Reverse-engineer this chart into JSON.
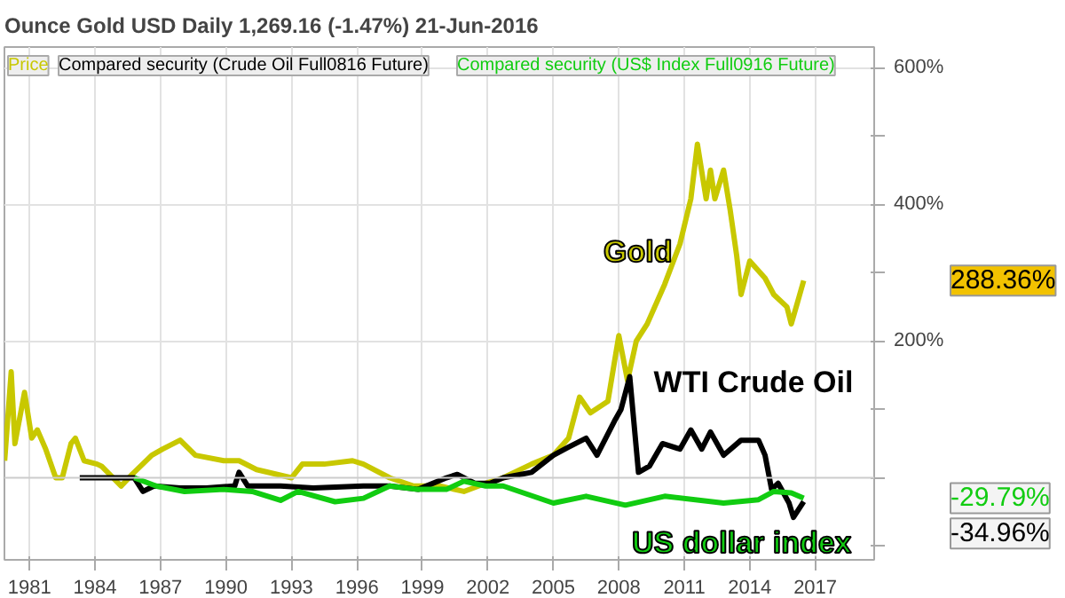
{
  "chart_data": {
    "type": "line",
    "title": "Ounce Gold USD   Daily   1,269.16 (-1.47%)   21-Jun-2016",
    "annotations": [
      "Price",
      "Compared security (Crude Oil Full0816 Future)",
      "Compared security (US$ Index Full0916 Future)",
      "288.36%",
      "-34.96%",
      "-29.79%"
    ],
    "xlim": [
      1979.85,
      2019.7
    ],
    "xticks": [
      1981,
      1984,
      1987,
      1990,
      1993,
      1996,
      1999,
      2002,
      2005,
      2008,
      2011,
      2014,
      2017
    ],
    "ylim": [
      -120,
      630
    ],
    "yticks": [
      {
        "value": -100,
        "label": null
      },
      {
        "value": 0,
        "label": null
      },
      {
        "value": 100,
        "label": null
      },
      {
        "value": 200,
        "label": "200%"
      },
      {
        "value": 300,
        "label": null
      },
      {
        "value": 400,
        "label": "400%"
      },
      {
        "value": 500,
        "label": null
      },
      {
        "value": 600,
        "label": "600%"
      }
    ],
    "grid": true,
    "line_style": "solid",
    "ref_lines": [
      {
        "axis": "y",
        "value": 0,
        "label": null,
        "color": "#cccccc"
      }
    ],
    "series": [
      {
        "name": "Gold",
        "color": "#c8c800",
        "x": [
          1979.86,
          1980.16,
          1980.33,
          1980.77,
          1981.1,
          1981.36,
          1981.74,
          1982.2,
          1982.5,
          1982.9,
          1983.1,
          1983.5,
          1984.1,
          1984.3,
          1985.2,
          1985.7,
          1986.6,
          1987.1,
          1987.9,
          1988.6,
          1989.9,
          1990.6,
          1991.4,
          1993.0,
          1993.5,
          1994.5,
          1995.8,
          1996.3,
          1997.5,
          1998.6,
          1999.8,
          2000.9,
          2001.9,
          2002.7,
          2004.0,
          2005.0,
          2005.7,
          2006.2,
          2006.7,
          2007.5,
          2008.0,
          2008.4,
          2008.8,
          2009.3,
          2010.1,
          2010.8,
          2011.3,
          2011.6,
          2012.0,
          2012.2,
          2012.4,
          2012.8,
          2013.1,
          2013.4,
          2013.6,
          2014.0,
          2014.7,
          2015.1,
          2015.7,
          2015.9,
          2016.2,
          2016.47
        ],
        "values": [
          25,
          155,
          50,
          125,
          58,
          70,
          42,
          0,
          0,
          50,
          58,
          25,
          20,
          17,
          -12,
          5,
          33,
          42,
          55,
          33,
          25,
          25,
          12,
          0,
          20,
          20,
          25,
          20,
          0,
          -12,
          -12,
          -20,
          -8,
          0,
          20,
          33,
          58,
          118,
          95,
          112,
          208,
          142,
          200,
          225,
          283,
          342,
          408,
          488,
          408,
          450,
          408,
          450,
          392,
          325,
          268,
          317,
          292,
          268,
          250,
          225,
          258,
          288.36
        ]
      },
      {
        "name": "WTI Crude Oil",
        "color": "#000000",
        "x": [
          1983.3,
          1984.8,
          1985.8,
          1986.2,
          1986.7,
          1987.9,
          1989.1,
          1990.4,
          1990.6,
          1991.0,
          1992.5,
          1994.0,
          1996.3,
          1997.5,
          1998.8,
          2000.1,
          2000.6,
          2001.4,
          2002.1,
          2002.7,
          2004.0,
          2005.0,
          2005.7,
          2006.5,
          2007.0,
          2007.8,
          2008.1,
          2008.5,
          2008.9,
          2009.4,
          2010.0,
          2010.8,
          2011.3,
          2011.8,
          2012.2,
          2012.8,
          2013.6,
          2014.4,
          2014.7,
          2015.0,
          2015.3,
          2015.8,
          2016.0,
          2016.47
        ],
        "values": [
          0,
          0,
          0,
          -20,
          -12,
          -15,
          -15,
          -12,
          8,
          -12,
          -12,
          -15,
          -12,
          -12,
          -17,
          0,
          5,
          -8,
          -8,
          0,
          8,
          33,
          45,
          58,
          33,
          83,
          100,
          148,
          8,
          17,
          50,
          42,
          70,
          42,
          67,
          33,
          55,
          55,
          33,
          -17,
          -8,
          -37,
          -58,
          -34.96
        ]
      },
      {
        "name": "US dollar index",
        "color": "#11cc11",
        "x": [
          1985.8,
          1986.8,
          1988.1,
          1989.9,
          1991.2,
          1992.5,
          1993.3,
          1995.0,
          1996.3,
          1997.5,
          1998.8,
          2000.1,
          2000.9,
          2001.9,
          2002.7,
          2005.0,
          2006.5,
          2008.3,
          2010.1,
          2012.8,
          2014.4,
          2015.1,
          2015.9,
          2016.47
        ],
        "values": [
          0,
          -12,
          -20,
          -17,
          -20,
          -33,
          -20,
          -35,
          -30,
          -12,
          -17,
          -17,
          -5,
          -12,
          -12,
          -37,
          -27,
          -40,
          -27,
          -37,
          -32,
          -20,
          -22,
          -29.79
        ]
      }
    ]
  }
}
